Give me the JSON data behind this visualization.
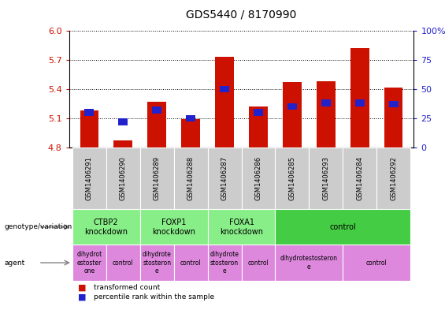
{
  "title": "GDS5440 / 8170990",
  "samples": [
    "GSM1406291",
    "GSM1406290",
    "GSM1406289",
    "GSM1406288",
    "GSM1406287",
    "GSM1406286",
    "GSM1406285",
    "GSM1406293",
    "GSM1406284",
    "GSM1406292"
  ],
  "bar_values": [
    5.18,
    4.87,
    5.27,
    5.09,
    5.73,
    5.22,
    5.47,
    5.48,
    5.82,
    5.42
  ],
  "percentile_values": [
    30,
    22,
    32,
    25,
    50,
    30,
    35,
    38,
    38,
    37
  ],
  "ymin": 4.8,
  "ymax": 6.0,
  "yticks_left": [
    4.8,
    5.1,
    5.4,
    5.7,
    6.0
  ],
  "yticks_right": [
    0,
    25,
    50,
    75,
    100
  ],
  "bar_color": "#cc1100",
  "blue_color": "#2222cc",
  "gray_box": "#cccccc",
  "green_light": "#88ee88",
  "green_dark": "#44cc44",
  "pink": "#dd88dd",
  "genotype_groups": [
    {
      "label": "CTBP2\nknockdown",
      "start": 0,
      "end": 2,
      "color": "#88ee88"
    },
    {
      "label": "FOXP1\nknockdown",
      "start": 2,
      "end": 4,
      "color": "#88ee88"
    },
    {
      "label": "FOXA1\nknockdown",
      "start": 4,
      "end": 6,
      "color": "#88ee88"
    },
    {
      "label": "control",
      "start": 6,
      "end": 10,
      "color": "#44cc44"
    }
  ],
  "agent_groups": [
    {
      "label": "dihydrot\nestoster\none",
      "start": 0,
      "end": 1,
      "color": "#dd88dd"
    },
    {
      "label": "control",
      "start": 1,
      "end": 2,
      "color": "#dd88dd"
    },
    {
      "label": "dihydrote\nstosteron\ne",
      "start": 2,
      "end": 3,
      "color": "#dd88dd"
    },
    {
      "label": "control",
      "start": 3,
      "end": 4,
      "color": "#dd88dd"
    },
    {
      "label": "dihydrote\nstosteron\ne",
      "start": 4,
      "end": 5,
      "color": "#dd88dd"
    },
    {
      "label": "control",
      "start": 5,
      "end": 6,
      "color": "#dd88dd"
    },
    {
      "label": "dihydrotestosteron\ne",
      "start": 6,
      "end": 8,
      "color": "#dd88dd"
    },
    {
      "label": "control",
      "start": 8,
      "end": 10,
      "color": "#dd88dd"
    }
  ]
}
